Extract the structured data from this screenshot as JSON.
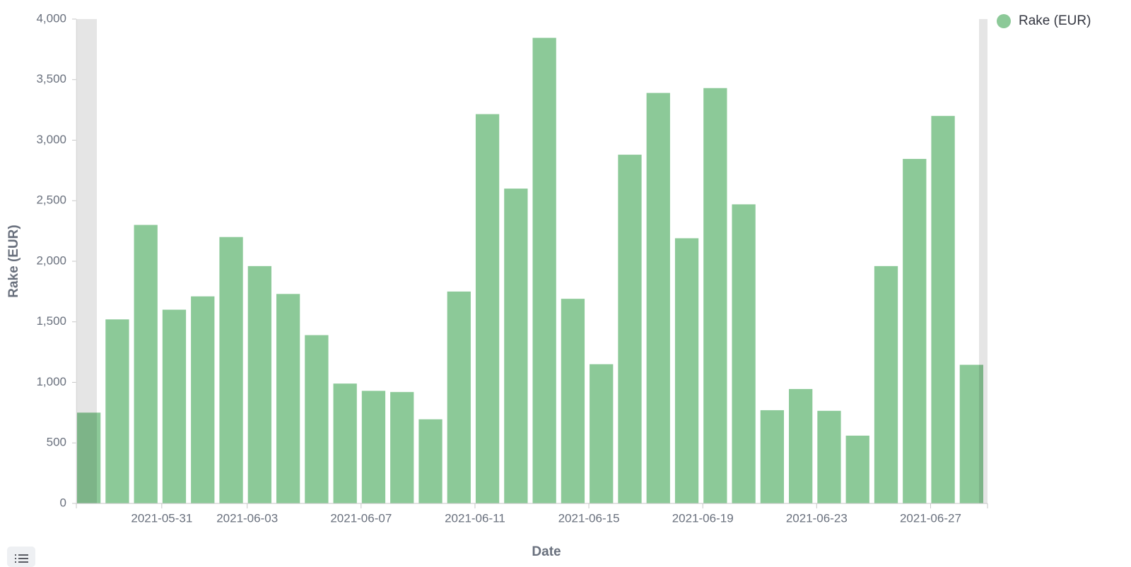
{
  "chart_data": {
    "type": "bar",
    "x_label": "Date",
    "y_label": "Rake (EUR)",
    "x": [
      "2021-05-28",
      "2021-05-29",
      "2021-05-30",
      "2021-05-31",
      "2021-06-01",
      "2021-06-02",
      "2021-06-03",
      "2021-06-04",
      "2021-06-05",
      "2021-06-06",
      "2021-06-07",
      "2021-06-08",
      "2021-06-09",
      "2021-06-10",
      "2021-06-11",
      "2021-06-12",
      "2021-06-13",
      "2021-06-14",
      "2021-06-15",
      "2021-06-16",
      "2021-06-17",
      "2021-06-18",
      "2021-06-19",
      "2021-06-20",
      "2021-06-21",
      "2021-06-22",
      "2021-06-23",
      "2021-06-24",
      "2021-06-25",
      "2021-06-26",
      "2021-06-27",
      "2021-06-28"
    ],
    "series": [
      {
        "name": "Rake (EUR)",
        "color": "#8cc998",
        "values": [
          750,
          1520,
          2300,
          1600,
          1710,
          2200,
          1960,
          1730,
          1390,
          990,
          930,
          920,
          695,
          1750,
          3215,
          2600,
          3845,
          1690,
          1150,
          2880,
          3390,
          2190,
          3430,
          2470,
          770,
          945,
          765,
          560,
          1960,
          2845,
          3200,
          1145
        ]
      }
    ],
    "xlim": [
      "2021-05-28",
      "2021-06-29"
    ],
    "xticks": [
      "2021-05-31",
      "2021-06-03",
      "2021-06-07",
      "2021-06-11",
      "2021-06-15",
      "2021-06-19",
      "2021-06-23",
      "2021-06-27"
    ],
    "ylim": [
      0,
      4000
    ],
    "yticks": [
      0,
      500,
      {
        "value": 1000,
        "label": "1,000"
      },
      {
        "value": 1500,
        "label": "1,500"
      },
      {
        "value": 2000,
        "label": "2,000"
      },
      {
        "value": 2500,
        "label": "2,500"
      },
      {
        "value": 3000,
        "label": "3,000"
      },
      {
        "value": 3500,
        "label": "3,500"
      },
      {
        "value": 4000,
        "label": "4,000"
      }
    ],
    "grid": false,
    "legend": "top-right"
  }
}
